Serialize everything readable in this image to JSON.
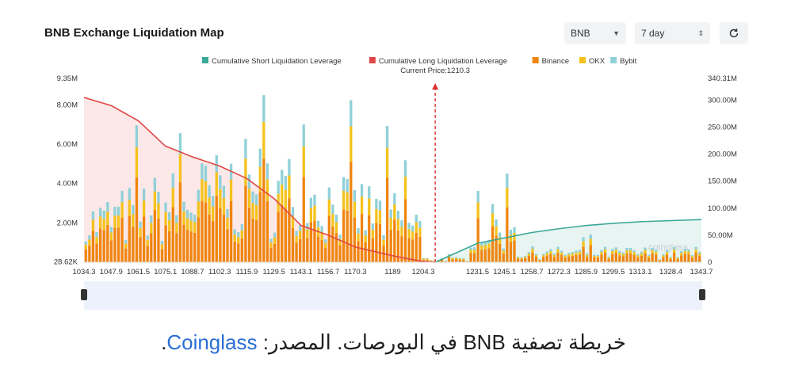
{
  "header": {
    "title": "BNB Exchange Liquidation Map",
    "coin_select": "BNB",
    "range_select": "7 day",
    "refresh_icon": "refresh-icon"
  },
  "chart_data": {
    "type": "bar",
    "current_price_label": "Current Price:1210.3",
    "current_price": 1210.3,
    "legend": [
      {
        "name": "Cumulative Short Liquidation Leverage",
        "color": "#3aa897"
      },
      {
        "name": "Cumulative Long Liquidation Leverage",
        "color": "#e04848"
      },
      {
        "name": "Binance",
        "color": "#f0850f"
      },
      {
        "name": "OKX",
        "color": "#f5c21c"
      },
      {
        "name": "Bybit",
        "color": "#8fd0d8"
      }
    ],
    "y_left_ticks": [
      "9.35M",
      "8.00M",
      "6.00M",
      "4.00M",
      "2.00M",
      "28.62K"
    ],
    "y_left_range": [
      28620,
      9350000
    ],
    "y_right_ticks": [
      "340.31M",
      "300.00M",
      "250.00M",
      "200.00M",
      "150.00M",
      "100.00M",
      "50.00M",
      "0"
    ],
    "y_right_range": [
      0,
      340310000
    ],
    "x_ticks": [
      "1034.3",
      "1047.9",
      "1061.5",
      "1075.1",
      "1088.7",
      "1102.3",
      "1115.9",
      "1129.5",
      "1143.1",
      "1156.7",
      "1170.3",
      "1189",
      "1204.3",
      "1231.5",
      "1245.1",
      "1258.7",
      "1272.3",
      "1285.9",
      "1299.5",
      "1313.1",
      "1328.4",
      "1343.7"
    ],
    "x_range": [
      1034.3,
      1343.7
    ],
    "long_curve": [
      [
        1034.3,
        305
      ],
      [
        1047.9,
        290
      ],
      [
        1061.5,
        262
      ],
      [
        1075.1,
        215
      ],
      [
        1088.7,
        195
      ],
      [
        1102.3,
        178
      ],
      [
        1115.9,
        155
      ],
      [
        1129.5,
        118
      ],
      [
        1143.1,
        68
      ],
      [
        1156.7,
        50
      ],
      [
        1170.3,
        28
      ],
      [
        1189,
        12
      ],
      [
        1204.3,
        1
      ],
      [
        1210.3,
        0
      ]
    ],
    "short_curve": [
      [
        1210.3,
        0
      ],
      [
        1231.5,
        35
      ],
      [
        1245.1,
        45
      ],
      [
        1258.7,
        55
      ],
      [
        1272.3,
        62
      ],
      [
        1285.9,
        68
      ],
      [
        1299.5,
        72
      ],
      [
        1313.1,
        75
      ],
      [
        1328.4,
        77
      ],
      [
        1343.7,
        79
      ]
    ],
    "watermark": "coinglass"
  },
  "caption": {
    "text_before": "خريطة تصفية BNB في البورصات. المصدر: ",
    "link": "Coinglass",
    "text_after": "."
  }
}
